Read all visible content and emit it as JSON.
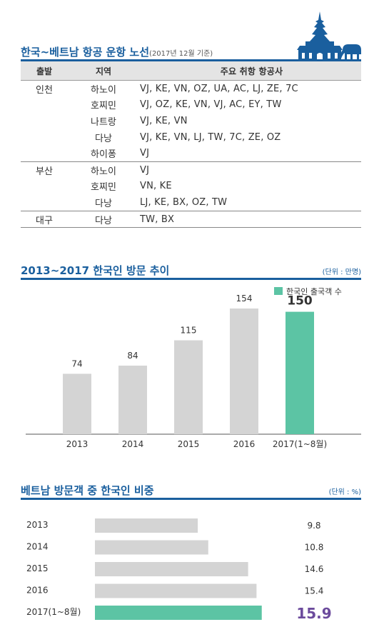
{
  "route_section": {
    "title": "한국~베트남 항공 운항 노선",
    "subtitle": "(2017년 12월 기준)",
    "headers": [
      "출발",
      "지역",
      "주요 취항 항공사"
    ],
    "groups": [
      {
        "departure": "인천",
        "rows": [
          {
            "region": "하노이",
            "airlines": "VJ, KE, VN, OZ, UA, AC, LJ, ZE, 7C"
          },
          {
            "region": "호찌민",
            "airlines": "VJ, OZ, KE, VN, VJ, AC, EY, TW"
          },
          {
            "region": "나트랑",
            "airlines": "VJ, KE, VN"
          },
          {
            "region": "다낭",
            "airlines": "VJ, KE, VN, LJ, TW, 7C, ZE, OZ"
          },
          {
            "region": "하이퐁",
            "airlines": "VJ"
          }
        ]
      },
      {
        "departure": "부산",
        "rows": [
          {
            "region": "하노이",
            "airlines": "VJ"
          },
          {
            "region": "호찌민",
            "airlines": "VN, KE"
          },
          {
            "region": "다낭",
            "airlines": "LJ, KE, BX, OZ, TW"
          }
        ]
      },
      {
        "departure": "대구",
        "rows": [
          {
            "region": "다낭",
            "airlines": "TW, BX"
          }
        ]
      }
    ]
  },
  "visits_section": {
    "title": "2013~2017 한국인 방문 추이",
    "unit": "(단위 : 만명)"
  },
  "share_section": {
    "title": "베트남 방문객 중 한국인 비중",
    "unit": "(단위 : %)"
  },
  "colors": {
    "accent": "#1a5f9e",
    "bar_gray": "#d4d4d4",
    "highlight": "#5cc4a4",
    "highlight_text": "#6b4a9c"
  },
  "chart_data": [
    {
      "type": "bar",
      "title": "2013~2017 한국인 방문 추이",
      "categories": [
        "2013",
        "2014",
        "2015",
        "2016",
        "2017(1~8월)"
      ],
      "series": [
        {
          "name": "한국인 출국객 수",
          "values": [
            74,
            84,
            115,
            154,
            150
          ]
        }
      ],
      "value_labels": [
        "74",
        "84",
        "115",
        "154",
        "150"
      ],
      "highlight_index": 4,
      "ylim": [
        0,
        175
      ],
      "legend": "top-right",
      "grid": false
    },
    {
      "type": "bar",
      "orientation": "horizontal",
      "title": "베트남 방문객 중 한국인 비중",
      "categories": [
        "2013",
        "2014",
        "2015",
        "2016",
        "2017(1~8월)"
      ],
      "values": [
        9.8,
        10.8,
        14.6,
        15.4,
        15.9
      ],
      "value_labels": [
        "9.8",
        "10.8",
        "14.6",
        "15.4",
        "15.9"
      ],
      "highlight_index": 4,
      "xlim": [
        0,
        16.5
      ],
      "grid": false
    }
  ]
}
